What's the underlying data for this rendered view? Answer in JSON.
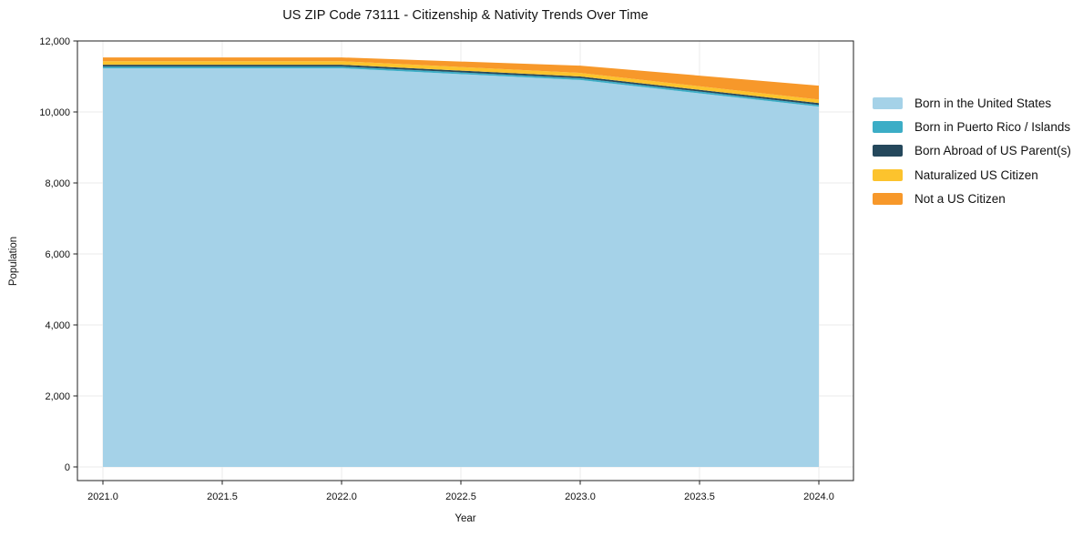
{
  "page": {
    "background": "#ffffff"
  },
  "chart_data": {
    "type": "area",
    "stacked": true,
    "title": "US ZIP Code 73111 - Citizenship & Nativity Trends Over Time",
    "xlabel": "Year",
    "ylabel": "Population",
    "x": [
      2021,
      2022,
      2023,
      2024
    ],
    "series": [
      {
        "name": "Born in the United States",
        "color": "#a5d2e8",
        "values": [
          11230,
          11230,
          10900,
          10150
        ]
      },
      {
        "name": "Born in Puerto Rico / Islands",
        "color": "#3cadc6",
        "values": [
          50,
          50,
          50,
          50
        ]
      },
      {
        "name": "Born Abroad of US Parent(s)",
        "color": "#25485c",
        "values": [
          50,
          50,
          50,
          50
        ]
      },
      {
        "name": "Naturalized US Citizen",
        "color": "#fcc32d",
        "values": [
          100,
          100,
          100,
          100
        ]
      },
      {
        "name": "Not a US Citizen",
        "color": "#f7982a",
        "values": [
          105,
          105,
          205,
          390
        ]
      }
    ],
    "totals": [
      11535,
      11535,
      11305,
      10740
    ],
    "xticks": [
      2021.0,
      2021.5,
      2022.0,
      2022.5,
      2023.0,
      2023.5,
      2024.0
    ],
    "xtick_labels": [
      "2021.0",
      "2021.5",
      "2022.0",
      "2022.5",
      "2023.0",
      "2023.5",
      "2024.0"
    ],
    "yticks": [
      0,
      2000,
      4000,
      6000,
      8000,
      10000,
      12000
    ],
    "ytick_labels": [
      "0",
      "2,000",
      "4,000",
      "6,000",
      "8,000",
      "10,000",
      "12,000"
    ],
    "ylim": [
      0,
      12000
    ],
    "grid": true,
    "grid_color": "#ebebeb",
    "spine_color": "#1f1f1f",
    "legend": {
      "position": "outside-right",
      "entries": [
        "Born in the United States",
        "Born in Puerto Rico / Islands",
        "Born Abroad of US Parent(s)",
        "Naturalized US Citizen",
        "Not a US Citizen"
      ]
    }
  }
}
